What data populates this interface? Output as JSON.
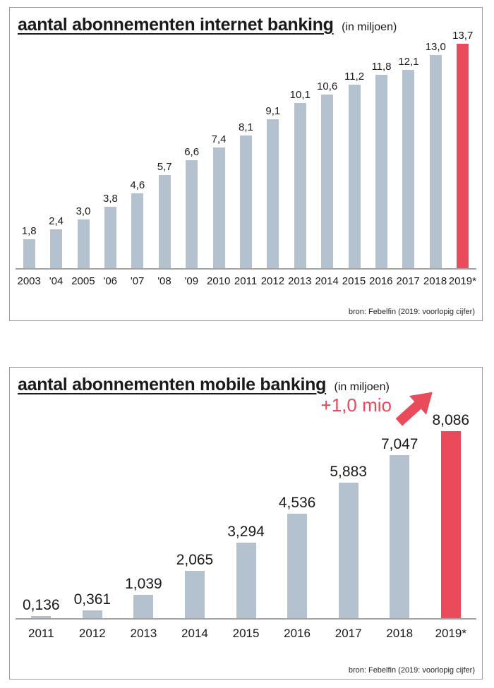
{
  "chart_data": [
    {
      "type": "bar",
      "title": "aantal abonnementen internet banking",
      "title_note": "(in miljoen)",
      "xlabel": "",
      "ylabel": "",
      "ylim": [
        0,
        14.6
      ],
      "grid": false,
      "legend_position": "none",
      "categories": [
        "2003",
        "'04",
        "2005",
        "'06",
        "'07",
        "'08",
        "'09",
        "2010",
        "2011",
        "2012",
        "2013",
        "2014",
        "2015",
        "2016",
        "2017",
        "2018",
        "2019*"
      ],
      "values": [
        1.8,
        2.4,
        3.0,
        3.8,
        4.6,
        5.7,
        6.6,
        7.4,
        8.1,
        9.1,
        10.1,
        10.6,
        11.2,
        11.8,
        12.1,
        13.0,
        13.7
      ],
      "value_labels": [
        "1,8",
        "2,4",
        "3,0",
        "3,8",
        "4,6",
        "5,7",
        "6,6",
        "7,4",
        "8,1",
        "9,1",
        "10,1",
        "10,6",
        "11,2",
        "11,8",
        "12,1",
        "13,0",
        "13,7"
      ],
      "highlight_index": 16,
      "colors": {
        "bar": "#b4c2cf",
        "highlight": "#ea4b5a"
      },
      "source": "bron: Febelfin (2019: voorlopig cijfer)"
    },
    {
      "type": "bar",
      "title": "aantal abonnementen mobile banking",
      "title_note": "(in miljoen)",
      "xlabel": "",
      "ylabel": "",
      "ylim": [
        0,
        9.0
      ],
      "grid": false,
      "legend_position": "none",
      "categories": [
        "2011",
        "2012",
        "2013",
        "2014",
        "2015",
        "2016",
        "2017",
        "2018",
        "2019*"
      ],
      "values": [
        0.136,
        0.361,
        1.039,
        2.065,
        3.294,
        4.536,
        5.883,
        7.047,
        8.086
      ],
      "value_labels": [
        "0,136",
        "0,361",
        "1,039",
        "2,065",
        "3,294",
        "4,536",
        "5,883",
        "7,047",
        "8,086"
      ],
      "highlight_index": 8,
      "annotation": "+1,0 mio",
      "colors": {
        "bar": "#b4c2cf",
        "highlight": "#ea4b5a"
      },
      "source": "bron: Febelfin (2019: voorlopig cijfer)"
    }
  ]
}
